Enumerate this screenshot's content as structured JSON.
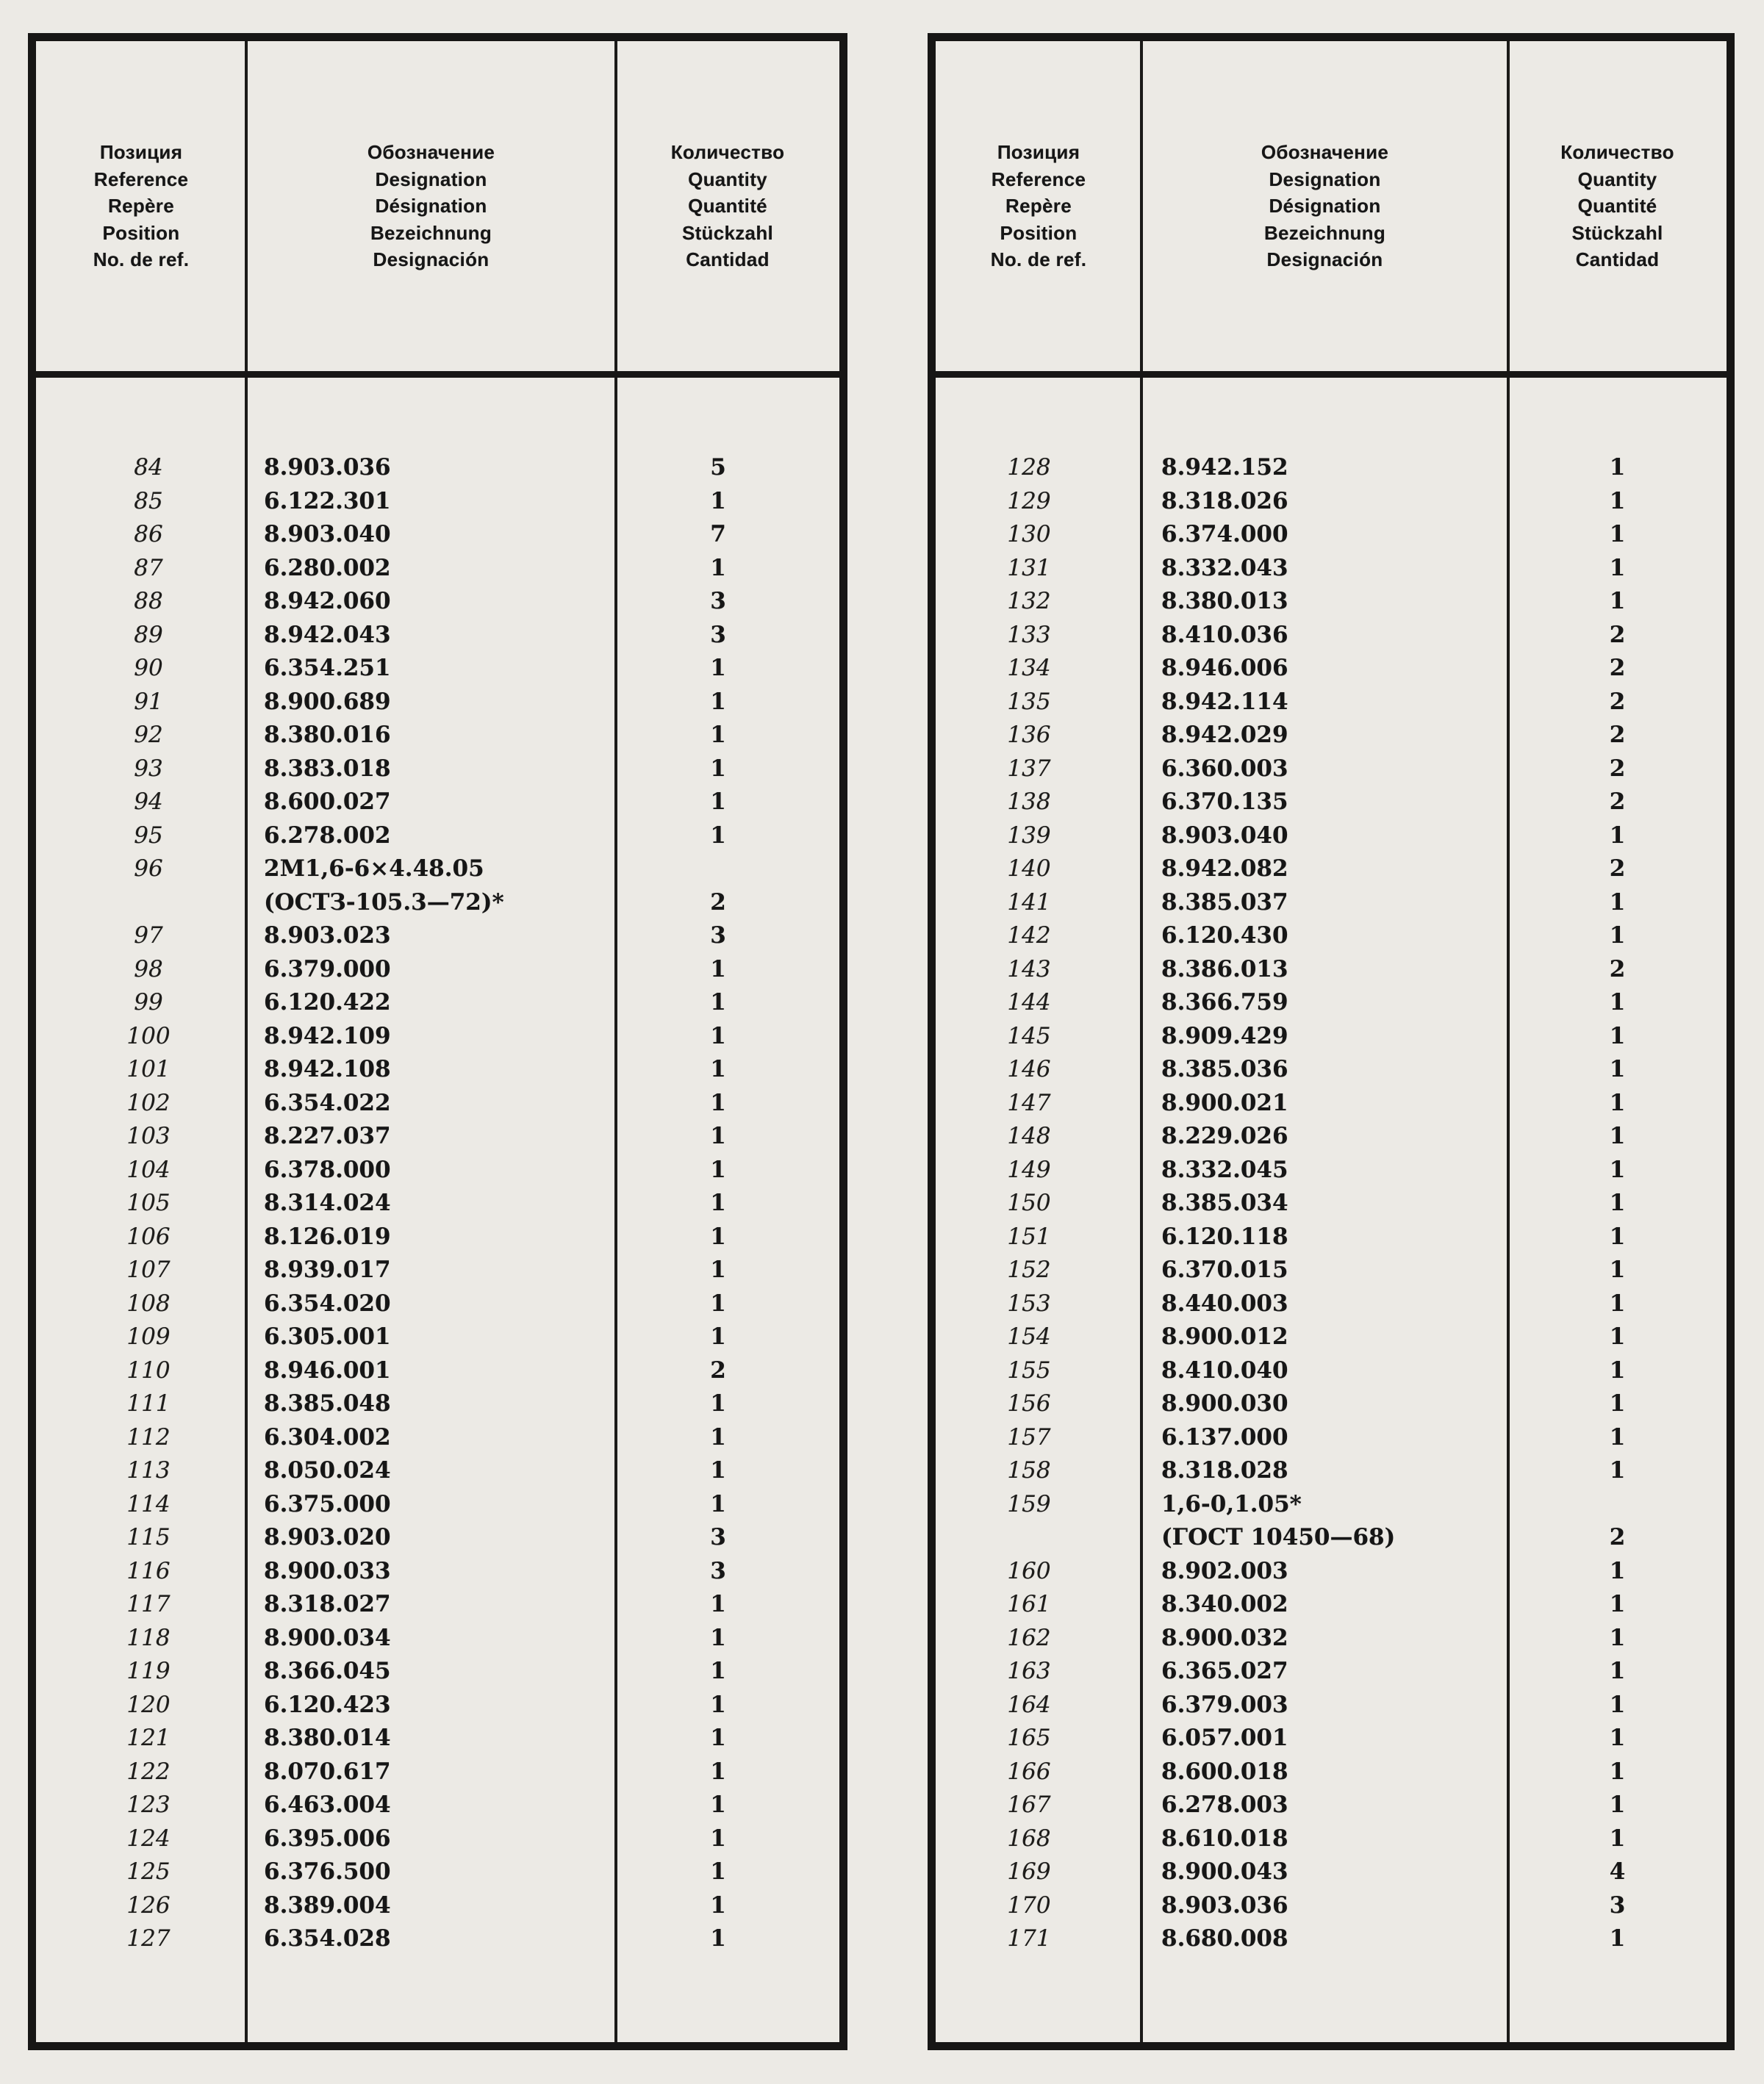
{
  "page": {
    "background": "#eceae5",
    "ink": "#171615"
  },
  "column_headers": {
    "position": [
      "Позиция",
      "Reference",
      "Repère",
      "Position",
      "No. de ref."
    ],
    "designation": [
      "Обозначение",
      "Designation",
      "Désignation",
      "Bezeichnung",
      "Designación"
    ],
    "quantity": [
      "Количество",
      "Quantity",
      "Quantité",
      "Stückzahl",
      "Cantidad"
    ]
  },
  "left_table": {
    "rows": [
      {
        "pos": "84",
        "des": "8.903.036",
        "qty": "5"
      },
      {
        "pos": "85",
        "des": "6.122.301",
        "qty": "1"
      },
      {
        "pos": "86",
        "des": "8.903.040",
        "qty": "7"
      },
      {
        "pos": "87",
        "des": "6.280.002",
        "qty": "1"
      },
      {
        "pos": "88",
        "des": "8.942.060",
        "qty": "3"
      },
      {
        "pos": "89",
        "des": "8.942.043",
        "qty": "3"
      },
      {
        "pos": "90",
        "des": "6.354.251",
        "qty": "1"
      },
      {
        "pos": "91",
        "des": "8.900.689",
        "qty": "1"
      },
      {
        "pos": "92",
        "des": "8.380.016",
        "qty": "1"
      },
      {
        "pos": "93",
        "des": "8.383.018",
        "qty": "1"
      },
      {
        "pos": "94",
        "des": "8.600.027",
        "qty": "1"
      },
      {
        "pos": "95",
        "des": "6.278.002",
        "qty": "1"
      },
      {
        "pos": "96",
        "des": [
          "2М1,6-6×4.48.05",
          "(ОСТЗ-105.3—72)*"
        ],
        "qty": "2"
      },
      {
        "pos": "97",
        "des": "8.903.023",
        "qty": "3"
      },
      {
        "pos": "98",
        "des": "6.379.000",
        "qty": "1"
      },
      {
        "pos": "99",
        "des": "6.120.422",
        "qty": "1"
      },
      {
        "pos": "100",
        "des": "8.942.109",
        "qty": "1"
      },
      {
        "pos": "101",
        "des": "8.942.108",
        "qty": "1"
      },
      {
        "pos": "102",
        "des": "6.354.022",
        "qty": "1"
      },
      {
        "pos": "103",
        "des": "8.227.037",
        "qty": "1"
      },
      {
        "pos": "104",
        "des": "6.378.000",
        "qty": "1"
      },
      {
        "pos": "105",
        "des": "8.314.024",
        "qty": "1"
      },
      {
        "pos": "106",
        "des": "8.126.019",
        "qty": "1"
      },
      {
        "pos": "107",
        "des": "8.939.017",
        "qty": "1"
      },
      {
        "pos": "108",
        "des": "6.354.020",
        "qty": "1"
      },
      {
        "pos": "109",
        "des": "6.305.001",
        "qty": "1"
      },
      {
        "pos": "110",
        "des": "8.946.001",
        "qty": "2"
      },
      {
        "pos": "111",
        "des": "8.385.048",
        "qty": "1"
      },
      {
        "pos": "112",
        "des": "6.304.002",
        "qty": "1"
      },
      {
        "pos": "113",
        "des": "8.050.024",
        "qty": "1"
      },
      {
        "pos": "114",
        "des": "6.375.000",
        "qty": "1"
      },
      {
        "pos": "115",
        "des": "8.903.020",
        "qty": "3"
      },
      {
        "pos": "116",
        "des": "8.900.033",
        "qty": "3"
      },
      {
        "pos": "117",
        "des": "8.318.027",
        "qty": "1"
      },
      {
        "pos": "118",
        "des": "8.900.034",
        "qty": "1"
      },
      {
        "pos": "119",
        "des": "8.366.045",
        "qty": "1"
      },
      {
        "pos": "120",
        "des": "6.120.423",
        "qty": "1"
      },
      {
        "pos": "121",
        "des": "8.380.014",
        "qty": "1"
      },
      {
        "pos": "122",
        "des": "8.070.617",
        "qty": "1"
      },
      {
        "pos": "123",
        "des": "6.463.004",
        "qty": "1"
      },
      {
        "pos": "124",
        "des": "6.395.006",
        "qty": "1"
      },
      {
        "pos": "125",
        "des": "6.376.500",
        "qty": "1"
      },
      {
        "pos": "126",
        "des": "8.389.004",
        "qty": "1"
      },
      {
        "pos": "127",
        "des": "6.354.028",
        "qty": "1"
      }
    ]
  },
  "right_table": {
    "rows": [
      {
        "pos": "128",
        "des": "8.942.152",
        "qty": "1"
      },
      {
        "pos": "129",
        "des": "8.318.026",
        "qty": "1"
      },
      {
        "pos": "130",
        "des": "6.374.000",
        "qty": "1"
      },
      {
        "pos": "131",
        "des": "8.332.043",
        "qty": "1"
      },
      {
        "pos": "132",
        "des": "8.380.013",
        "qty": "1"
      },
      {
        "pos": "133",
        "des": "8.410.036",
        "qty": "2"
      },
      {
        "pos": "134",
        "des": "8.946.006",
        "qty": "2"
      },
      {
        "pos": "135",
        "des": "8.942.114",
        "qty": "2"
      },
      {
        "pos": "136",
        "des": "8.942.029",
        "qty": "2"
      },
      {
        "pos": "137",
        "des": "6.360.003",
        "qty": "2"
      },
      {
        "pos": "138",
        "des": "6.370.135",
        "qty": "2"
      },
      {
        "pos": "139",
        "des": "8.903.040",
        "qty": "1"
      },
      {
        "pos": "140",
        "des": "8.942.082",
        "qty": "2"
      },
      {
        "pos": "141",
        "des": "8.385.037",
        "qty": "1"
      },
      {
        "pos": "142",
        "des": "6.120.430",
        "qty": "1"
      },
      {
        "pos": "143",
        "des": "8.386.013",
        "qty": "2"
      },
      {
        "pos": "144",
        "des": "8.366.759",
        "qty": "1"
      },
      {
        "pos": "145",
        "des": "8.909.429",
        "qty": "1"
      },
      {
        "pos": "146",
        "des": "8.385.036",
        "qty": "1"
      },
      {
        "pos": "147",
        "des": "8.900.021",
        "qty": "1"
      },
      {
        "pos": "148",
        "des": "8.229.026",
        "qty": "1"
      },
      {
        "pos": "149",
        "des": "8.332.045",
        "qty": "1"
      },
      {
        "pos": "150",
        "des": "8.385.034",
        "qty": "1"
      },
      {
        "pos": "151",
        "des": "6.120.118",
        "qty": "1"
      },
      {
        "pos": "152",
        "des": "6.370.015",
        "qty": "1"
      },
      {
        "pos": "153",
        "des": "8.440.003",
        "qty": "1"
      },
      {
        "pos": "154",
        "des": "8.900.012",
        "qty": "1"
      },
      {
        "pos": "155",
        "des": "8.410.040",
        "qty": "1"
      },
      {
        "pos": "156",
        "des": "8.900.030",
        "qty": "1"
      },
      {
        "pos": "157",
        "des": "6.137.000",
        "qty": "1"
      },
      {
        "pos": "158",
        "des": "8.318.028",
        "qty": "1"
      },
      {
        "pos": "159",
        "des": [
          "1,6-0,1.05*",
          "(ГОСТ 10450—68)"
        ],
        "qty": "2"
      },
      {
        "pos": "160",
        "des": "8.902.003",
        "qty": "1"
      },
      {
        "pos": "161",
        "des": "8.340.002",
        "qty": "1"
      },
      {
        "pos": "162",
        "des": "8.900.032",
        "qty": "1"
      },
      {
        "pos": "163",
        "des": "6.365.027",
        "qty": "1"
      },
      {
        "pos": "164",
        "des": "6.379.003",
        "qty": "1"
      },
      {
        "pos": "165",
        "des": "6.057.001",
        "qty": "1"
      },
      {
        "pos": "166",
        "des": "8.600.018",
        "qty": "1"
      },
      {
        "pos": "167",
        "des": "6.278.003",
        "qty": "1"
      },
      {
        "pos": "168",
        "des": "8.610.018",
        "qty": "1"
      },
      {
        "pos": "169",
        "des": "8.900.043",
        "qty": "4"
      },
      {
        "pos": "170",
        "des": "8.903.036",
        "qty": "3"
      },
      {
        "pos": "171",
        "des": "8.680.008",
        "qty": "1"
      }
    ]
  }
}
